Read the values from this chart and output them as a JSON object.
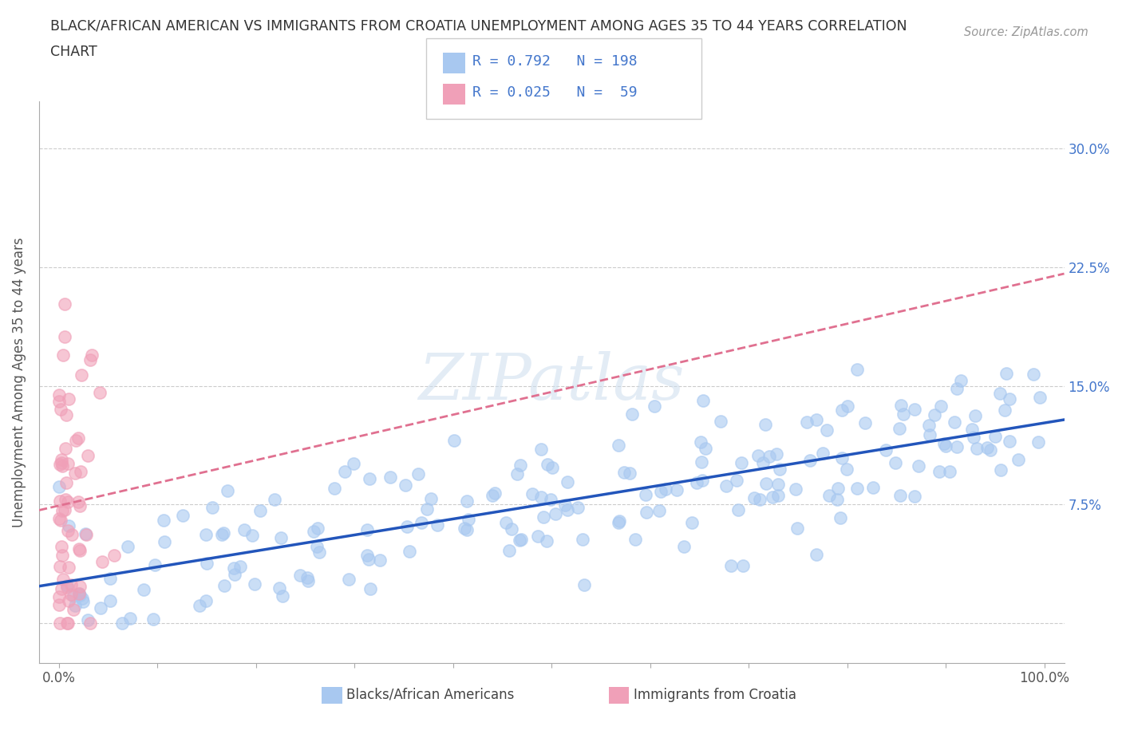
{
  "title_line1": "BLACK/AFRICAN AMERICAN VS IMMIGRANTS FROM CROATIA UNEMPLOYMENT AMONG AGES 35 TO 44 YEARS CORRELATION",
  "title_line2": "CHART",
  "source_text": "Source: ZipAtlas.com",
  "ylabel": "Unemployment Among Ages 35 to 44 years",
  "x_ticks": [
    0.0,
    0.1,
    0.2,
    0.3,
    0.4,
    0.5,
    0.6,
    0.7,
    0.8,
    0.9,
    1.0
  ],
  "y_ticks": [
    0.0,
    0.075,
    0.15,
    0.225,
    0.3
  ],
  "y_tick_labels": [
    "",
    "7.5%",
    "15.0%",
    "22.5%",
    "30.0%"
  ],
  "blue_color": "#a8c8f0",
  "pink_color": "#f0a0b8",
  "blue_line_color": "#2255bb",
  "pink_line_color": "#e07090",
  "watermark": "ZIPatlas",
  "blue_R": 0.792,
  "pink_R": 0.025,
  "blue_N": 198,
  "pink_N": 59
}
